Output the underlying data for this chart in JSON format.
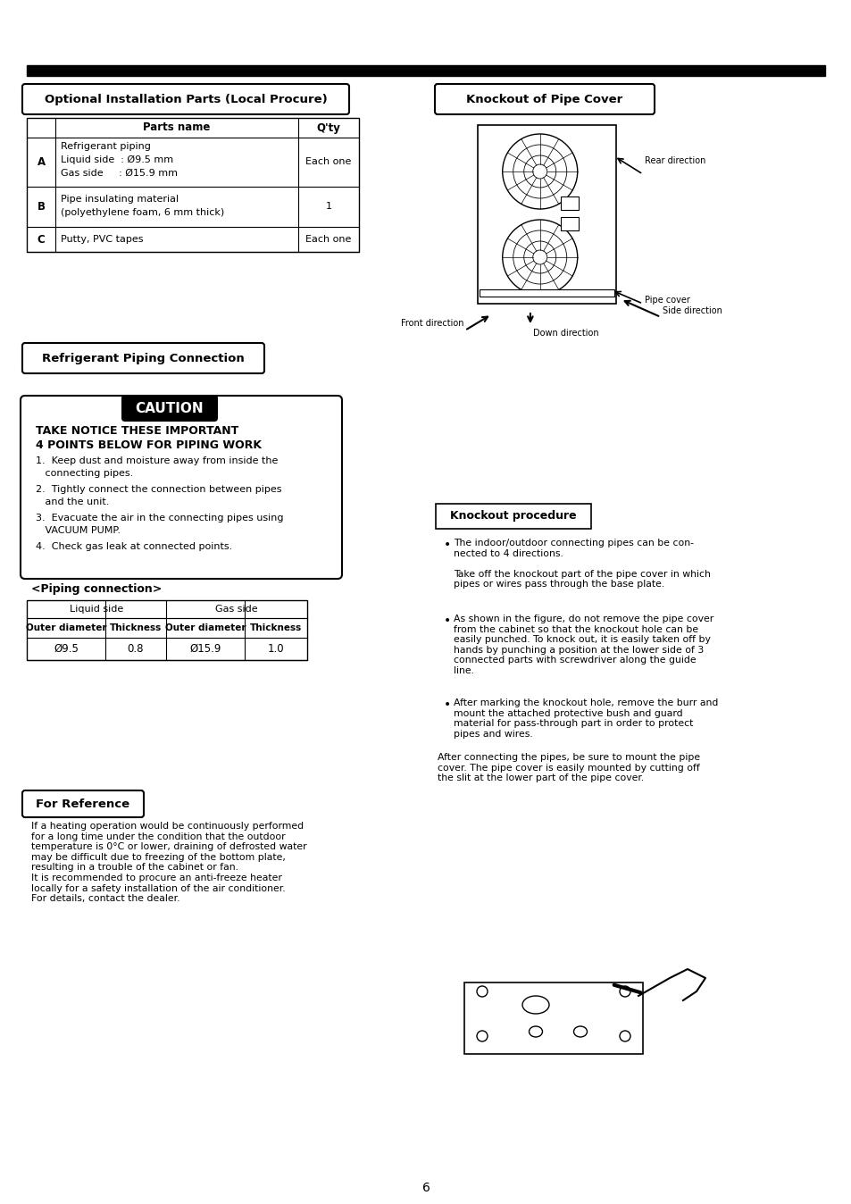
{
  "page_number": "6",
  "top_bar_color": "#000000",
  "background_color": "#ffffff",
  "section1_title": "Optional Installation Parts (Local Procure)",
  "section2_title": "Knockout of Pipe Cover",
  "section3_title": "Refrigerant Piping Connection",
  "section4_title": "For Reference",
  "caution_title": "CAUTION",
  "caution_box_title": "TAKE NOTICE THESE IMPORTANT\n4 POINTS BELOW FOR PIPING WORK",
  "caution_points": [
    "Keep dust and moisture away from inside the\n    connecting pipes.",
    "Tightly connect the connection between pipes\n    and the unit.",
    "Evacuate the air in the connecting pipes using\n    VACUUM PUMP.",
    "Check gas leak at connected points."
  ],
  "parts_table_headers": [
    "",
    "Parts name",
    "Q'ty"
  ],
  "parts_table_rows": [
    [
      "A",
      "Refrigerant piping\nLiquid side  : Ø9.5 mm\nGas side     : Ø15.9 mm",
      "Each one"
    ],
    [
      "B",
      "Pipe insulating material\n(polyethylene foam, 6 mm thick)",
      "1"
    ],
    [
      "C",
      "Putty, PVC tapes",
      "Each one"
    ]
  ],
  "piping_title": "<Piping connection>",
  "piping_table_headers": [
    "Liquid side",
    "",
    "Gas side",
    ""
  ],
  "piping_table_subheaders": [
    "Outer diameter",
    "Thickness",
    "Outer diameter",
    "Thickness"
  ],
  "piping_table_row": [
    "Ø9.5",
    "0.8",
    "Ø15.9",
    "1.0"
  ],
  "knockout_proc_title": "Knockout procedure",
  "knockout_bullets": [
    "The indoor/outdoor connecting pipes can be con-\nnected to 4 directions.\n\nTake off the knockout part of the pipe cover in which\npipes or wires pass through the base plate.",
    "As shown in the figure, do not remove the pipe cover\nfrom the cabinet so that the knockout hole can be\neasily punched. To knock out, it is easily taken off by\nhands by punching a position at the lower side of 3\nconnected parts with screwdriver along the guide\nline.",
    "After marking the knockout hole, remove the burr and\nmount the attached protective bush and guard\nmaterial for pass-through part in order to protect\npipes and wires."
  ],
  "knockout_footer": "After connecting the pipes, be sure to mount the pipe\ncover. The pipe cover is easily mounted by cutting off\nthe slit at the lower part of the pipe cover.",
  "for_reference_text": "If a heating operation would be continuously performed\nfor a long time under the condition that the outdoor\ntemperature is 0°C or lower, draining of defrosted water\nmay be difficult due to freezing of the bottom plate,\nresulting in a trouble of the cabinet or fan.\nIt is recommended to procure an anti-freeze heater\nlocally for a safety installation of the air conditioner.\nFor details, contact the dealer.",
  "directions": [
    "Rear direction",
    "Pipe cover",
    "Side direction",
    "Front direction",
    "Down direction"
  ]
}
